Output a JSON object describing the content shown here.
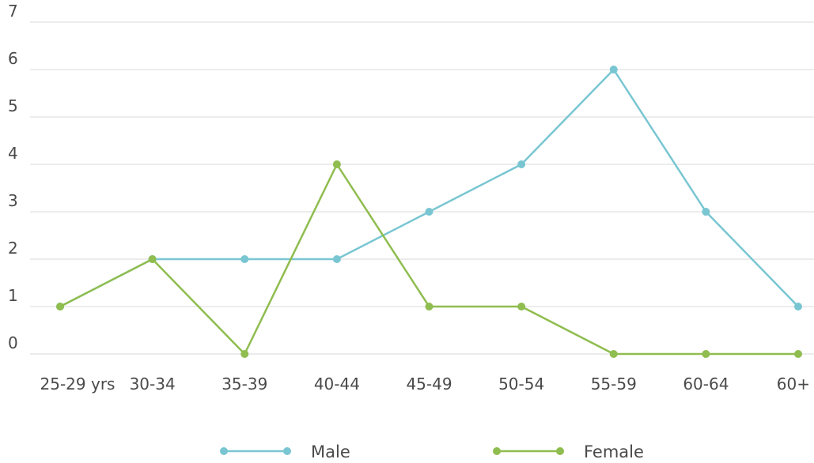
{
  "chart_data": {
    "type": "line",
    "categories": [
      "25-29 yrs",
      "30-34",
      "35-39",
      "40-44",
      "45-49",
      "50-54",
      "55-59",
      "60-64",
      "60+"
    ],
    "series": [
      {
        "name": "Male",
        "color": "#79c6d2",
        "values": [
          1,
          2,
          2,
          2,
          3,
          4,
          6,
          3,
          1
        ]
      },
      {
        "name": "Female",
        "color": "#8fbd4f",
        "values": [
          1,
          2,
          0,
          4,
          1,
          1,
          0,
          0,
          0
        ]
      }
    ],
    "y_ticks": [
      0,
      1,
      2,
      3,
      4,
      5,
      6,
      7
    ],
    "ylim": [
      0,
      7
    ],
    "grid": true,
    "legend": "bottom"
  }
}
